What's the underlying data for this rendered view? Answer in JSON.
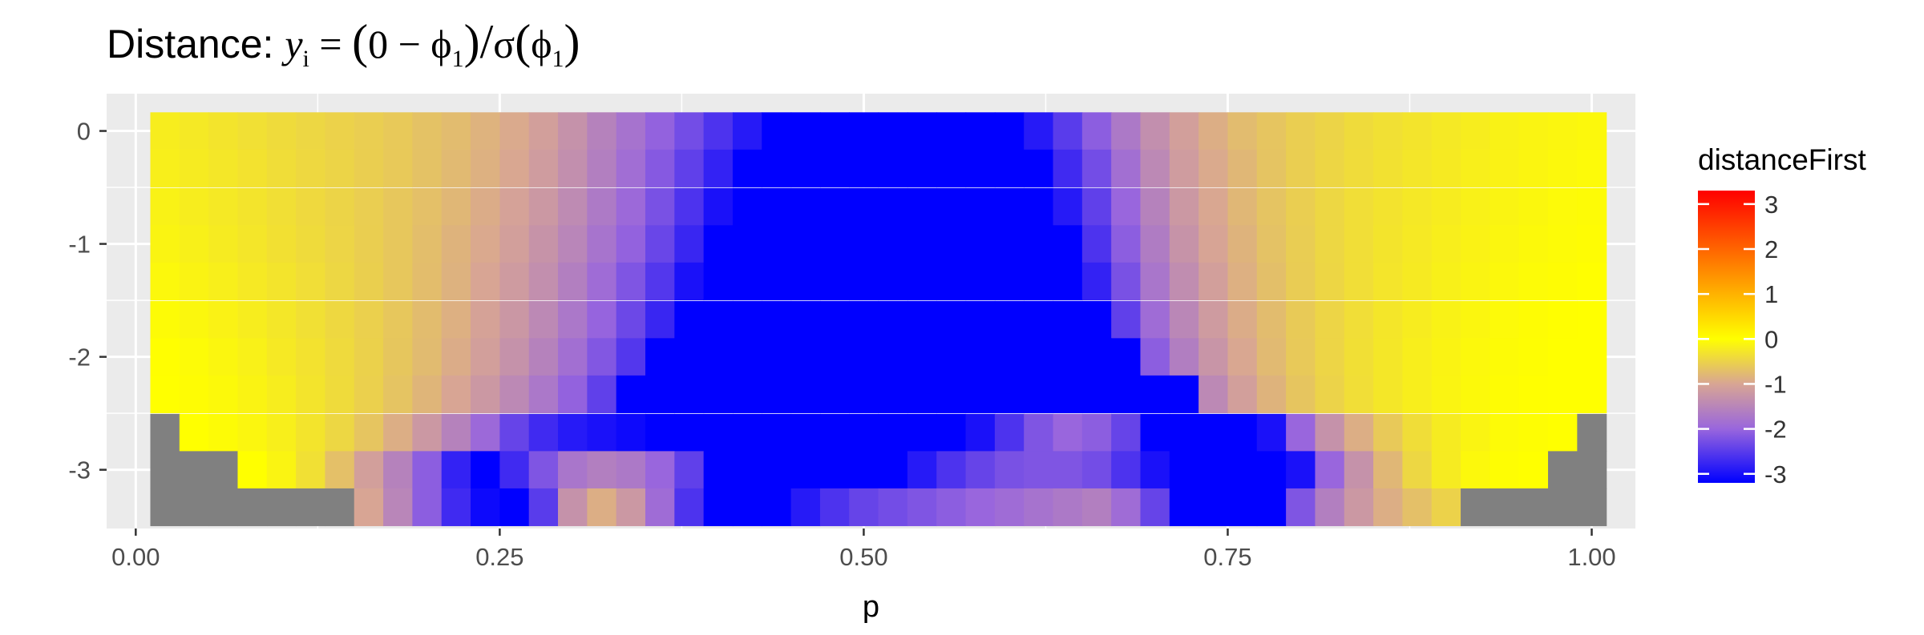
{
  "chart_data": {
    "type": "heatmap",
    "title": {
      "prefix": "Distance: ",
      "formula": [
        "y",
        "i",
        " = ",
        "(",
        "0 − ",
        "ϕ",
        "1",
        ")",
        "/",
        "σ",
        "(",
        "ϕ",
        "1",
        ")"
      ]
    },
    "xlabel": "p",
    "ylabel": "",
    "xlim": [
      -0.02,
      1.03
    ],
    "ylim": [
      -3.52,
      0.33
    ],
    "x_ticks": [
      0.0,
      0.25,
      0.5,
      0.75,
      1.0
    ],
    "x_tick_labels": [
      "0.00",
      "0.25",
      "0.50",
      "0.75",
      "1.00"
    ],
    "y_ticks": [
      0,
      -1,
      -2,
      -3
    ],
    "y_tick_labels": [
      "0",
      "-1",
      "-2",
      "-3"
    ],
    "grid": true,
    "legend": {
      "title": "distanceFirst",
      "position": "right",
      "range": [
        -3.2,
        3.3
      ],
      "ticks": [
        3,
        2,
        1,
        0,
        -1,
        -2,
        -3
      ],
      "tick_labels": [
        "3",
        "2",
        "1",
        "0",
        "-1",
        "-2",
        "-3"
      ],
      "colors": [
        {
          "value": -3.2,
          "color": "#0000ff"
        },
        {
          "value": -2.0,
          "color": "#9966dd"
        },
        {
          "value": -1.0,
          "color": "#d8a594"
        },
        {
          "value": 0.0,
          "color": "#ffff00"
        },
        {
          "value": 3.3,
          "color": "#ff0000"
        }
      ]
    },
    "na_color": "#808080",
    "x_cells": [
      0.02,
      0.04,
      0.06,
      0.08,
      0.1,
      0.12,
      0.14,
      0.16,
      0.18,
      0.2,
      0.22,
      0.24,
      0.26,
      0.28,
      0.3,
      0.32,
      0.34,
      0.36,
      0.38,
      0.4,
      0.42,
      0.44,
      0.46,
      0.48,
      0.5,
      0.52,
      0.54,
      0.56,
      0.58,
      0.6,
      0.62,
      0.64,
      0.66,
      0.68,
      0.7,
      0.72,
      0.74,
      0.76,
      0.78,
      0.8,
      0.82,
      0.84,
      0.86,
      0.88,
      0.9,
      0.92,
      0.94,
      0.96,
      0.98,
      1.0
    ],
    "y_cells": [
      0.0,
      -0.33,
      -0.67,
      -1.0,
      -1.33,
      -1.67,
      -2.0,
      -2.33,
      -2.67,
      -3.0,
      -3.33
    ],
    "values_rows_top_to_bottom": [
      [
        -0.2,
        -0.25,
        -0.3,
        -0.35,
        -0.4,
        -0.45,
        -0.5,
        -0.55,
        -0.6,
        -0.68,
        -0.75,
        -0.85,
        -0.95,
        -1.1,
        -1.3,
        -1.55,
        -1.8,
        -2.05,
        -2.3,
        -2.6,
        -2.9,
        -3.2,
        -3.2,
        -3.2,
        -3.2,
        -3.2,
        -3.2,
        -3.2,
        -3.2,
        -3.2,
        -2.9,
        -2.5,
        -2.1,
        -1.7,
        -1.35,
        -1.1,
        -0.9,
        -0.75,
        -0.65,
        -0.55,
        -0.48,
        -0.4,
        -0.35,
        -0.3,
        -0.25,
        -0.2,
        -0.15,
        -0.12,
        -0.1,
        -0.08
      ],
      [
        -0.18,
        -0.22,
        -0.27,
        -0.32,
        -0.38,
        -0.43,
        -0.48,
        -0.54,
        -0.6,
        -0.68,
        -0.77,
        -0.87,
        -0.98,
        -1.15,
        -1.35,
        -1.6,
        -1.88,
        -2.15,
        -2.45,
        -2.8,
        -3.2,
        -3.2,
        -3.2,
        -3.2,
        -3.2,
        -3.2,
        -3.2,
        -3.2,
        -3.2,
        -3.2,
        -3.2,
        -2.7,
        -2.3,
        -1.85,
        -1.45,
        -1.15,
        -0.95,
        -0.8,
        -0.66,
        -0.55,
        -0.46,
        -0.39,
        -0.33,
        -0.28,
        -0.23,
        -0.18,
        -0.14,
        -0.11,
        -0.08,
        -0.06
      ],
      [
        -0.15,
        -0.2,
        -0.25,
        -0.3,
        -0.36,
        -0.42,
        -0.48,
        -0.55,
        -0.62,
        -0.7,
        -0.8,
        -0.92,
        -1.05,
        -1.2,
        -1.42,
        -1.68,
        -1.95,
        -2.25,
        -2.6,
        -3.0,
        -3.2,
        -3.2,
        -3.2,
        -3.2,
        -3.2,
        -3.2,
        -3.2,
        -3.2,
        -3.2,
        -3.2,
        -3.2,
        -2.9,
        -2.45,
        -2.0,
        -1.55,
        -1.2,
        -0.98,
        -0.8,
        -0.66,
        -0.55,
        -0.45,
        -0.37,
        -0.31,
        -0.26,
        -0.21,
        -0.16,
        -0.12,
        -0.09,
        -0.06,
        -0.04
      ],
      [
        -0.12,
        -0.17,
        -0.22,
        -0.28,
        -0.34,
        -0.4,
        -0.47,
        -0.54,
        -0.62,
        -0.72,
        -0.84,
        -0.96,
        -1.1,
        -1.28,
        -1.5,
        -1.78,
        -2.05,
        -2.38,
        -2.75,
        -3.2,
        -3.2,
        -3.2,
        -3.2,
        -3.2,
        -3.2,
        -3.2,
        -3.2,
        -3.2,
        -3.2,
        -3.2,
        -3.2,
        -3.2,
        -2.6,
        -2.1,
        -1.65,
        -1.28,
        -1.02,
        -0.84,
        -0.68,
        -0.56,
        -0.45,
        -0.37,
        -0.3,
        -0.24,
        -0.19,
        -0.14,
        -0.1,
        -0.07,
        -0.05,
        -0.03
      ],
      [
        -0.08,
        -0.13,
        -0.18,
        -0.24,
        -0.3,
        -0.37,
        -0.45,
        -0.53,
        -0.62,
        -0.73,
        -0.86,
        -1.0,
        -1.16,
        -1.35,
        -1.6,
        -1.9,
        -2.2,
        -2.55,
        -3.0,
        -3.2,
        -3.2,
        -3.2,
        -3.2,
        -3.2,
        -3.2,
        -3.2,
        -3.2,
        -3.2,
        -3.2,
        -3.2,
        -3.2,
        -3.2,
        -2.8,
        -2.25,
        -1.75,
        -1.38,
        -1.1,
        -0.88,
        -0.71,
        -0.57,
        -0.46,
        -0.37,
        -0.29,
        -0.23,
        -0.17,
        -0.12,
        -0.08,
        -0.05,
        -0.03,
        -0.01
      ],
      [
        -0.04,
        -0.09,
        -0.14,
        -0.2,
        -0.27,
        -0.35,
        -0.43,
        -0.52,
        -0.62,
        -0.74,
        -0.88,
        -1.04,
        -1.22,
        -1.45,
        -1.72,
        -2.02,
        -2.35,
        -2.75,
        -3.2,
        -3.2,
        -3.2,
        -3.2,
        -3.2,
        -3.2,
        -3.2,
        -3.2,
        -3.2,
        -3.2,
        -3.2,
        -3.2,
        -3.2,
        -3.2,
        -3.2,
        -2.45,
        -1.9,
        -1.48,
        -1.16,
        -0.92,
        -0.74,
        -0.59,
        -0.47,
        -0.37,
        -0.28,
        -0.21,
        -0.15,
        -0.1,
        -0.06,
        -0.03,
        -0.01,
        0.0
      ],
      [
        -0.01,
        -0.05,
        -0.1,
        -0.16,
        -0.24,
        -0.32,
        -0.41,
        -0.51,
        -0.63,
        -0.76,
        -0.92,
        -1.1,
        -1.3,
        -1.55,
        -1.85,
        -2.18,
        -2.55,
        -3.2,
        -3.2,
        -3.2,
        -3.2,
        -3.2,
        -3.2,
        -3.2,
        -3.2,
        -3.2,
        -3.2,
        -3.2,
        -3.2,
        -3.2,
        -3.2,
        -3.2,
        -3.2,
        -3.2,
        -2.1,
        -1.62,
        -1.26,
        -0.98,
        -0.77,
        -0.6,
        -0.47,
        -0.36,
        -0.27,
        -0.19,
        -0.13,
        -0.08,
        -0.04,
        -0.02,
        0.0,
        0.0
      ],
      [
        0.0,
        -0.03,
        -0.07,
        -0.13,
        -0.2,
        -0.3,
        -0.4,
        -0.52,
        -0.66,
        -0.82,
        -1.0,
        -1.2,
        -1.45,
        -1.72,
        -2.05,
        -2.45,
        -3.2,
        -3.2,
        -3.2,
        -3.2,
        -3.2,
        -3.2,
        -3.2,
        -3.2,
        -3.2,
        -3.2,
        -3.2,
        -3.2,
        -3.2,
        -3.2,
        -3.2,
        -3.2,
        -3.2,
        -3.2,
        -3.2,
        -3.2,
        -1.45,
        -1.1,
        -0.84,
        -0.64,
        -0.49,
        -0.37,
        -0.27,
        -0.19,
        -0.12,
        -0.07,
        -0.03,
        -0.01,
        0.0,
        0.0
      ],
      [
        null,
        0.0,
        -0.04,
        -0.1,
        -0.18,
        -0.3,
        -0.45,
        -0.65,
        -0.9,
        -1.2,
        -1.55,
        -1.95,
        -2.4,
        -2.7,
        -2.9,
        -3.0,
        -3.1,
        -3.2,
        -3.2,
        -3.2,
        -3.2,
        -3.2,
        -3.2,
        -3.2,
        -3.2,
        -3.2,
        -3.2,
        -3.2,
        -3.0,
        -2.6,
        -2.2,
        -2.0,
        -2.1,
        -2.4,
        -3.2,
        -3.2,
        -3.2,
        -3.2,
        -3.0,
        -2.0,
        -1.3,
        -0.9,
        -0.6,
        -0.38,
        -0.22,
        -0.12,
        -0.05,
        -0.02,
        0.0,
        null
      ],
      [
        null,
        null,
        null,
        0.0,
        -0.12,
        -0.35,
        -0.7,
        -1.1,
        -1.55,
        -2.1,
        -2.8,
        -3.2,
        -2.7,
        -2.2,
        -1.75,
        -1.6,
        -1.7,
        -2.0,
        -2.45,
        -3.2,
        -3.2,
        -3.2,
        -3.2,
        -3.2,
        -3.2,
        -3.2,
        -2.9,
        -2.6,
        -2.4,
        -2.25,
        -2.2,
        -2.2,
        -2.3,
        -2.6,
        -3.0,
        -3.2,
        -3.2,
        -3.2,
        -3.2,
        -3.0,
        -2.0,
        -1.3,
        -0.8,
        -0.45,
        -0.22,
        -0.08,
        -0.02,
        0.0,
        null,
        null
      ],
      [
        null,
        null,
        null,
        null,
        null,
        null,
        null,
        -1.0,
        -1.5,
        -2.1,
        -2.7,
        -3.1,
        -3.2,
        -2.5,
        -1.3,
        -0.9,
        -1.2,
        -1.9,
        -2.6,
        -3.2,
        -3.2,
        -3.2,
        -2.9,
        -2.6,
        -2.4,
        -2.3,
        -2.2,
        -2.1,
        -2.0,
        -1.9,
        -1.8,
        -1.7,
        -1.6,
        -1.9,
        -2.4,
        -3.2,
        -3.2,
        -3.2,
        -3.2,
        -2.2,
        -1.6,
        -1.2,
        -0.9,
        -0.7,
        -0.5,
        null,
        null,
        null,
        null,
        null
      ]
    ]
  }
}
